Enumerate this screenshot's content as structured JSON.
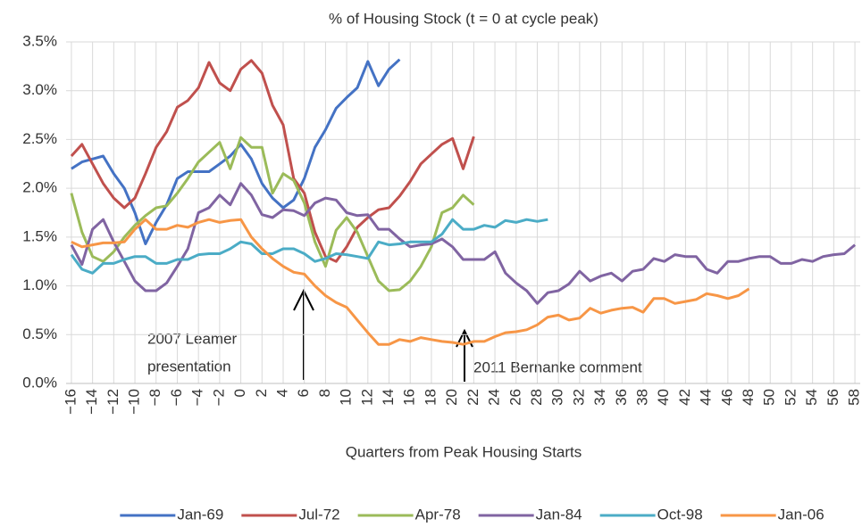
{
  "chart_data": {
    "type": "line",
    "title": "% of Housing Stock (t = 0 at cycle peak)",
    "x_label": "Quarters from Peak Housing Starts",
    "xlim": [
      -16.5,
      58.5
    ],
    "xticks": [
      {
        "value": -16,
        "label": "−16"
      },
      {
        "value": -14,
        "label": "−14"
      },
      {
        "value": -12,
        "label": "−12"
      },
      {
        "value": -10,
        "label": "−10"
      },
      {
        "value": -8,
        "label": "−8"
      },
      {
        "value": -6,
        "label": "−6"
      },
      {
        "value": -4,
        "label": "−4"
      },
      {
        "value": -2,
        "label": "−2"
      },
      0,
      2,
      4,
      6,
      8,
      10,
      12,
      14,
      16,
      18,
      20,
      22,
      24,
      26,
      28,
      30,
      32,
      34,
      36,
      38,
      40,
      42,
      44,
      46,
      48,
      50,
      52,
      54,
      56,
      58
    ],
    "ylim": [
      0,
      3.5
    ],
    "yticks": [
      {
        "value": 0,
        "label": "0.0%"
      },
      {
        "value": 0.5,
        "label": "0.5%"
      },
      {
        "value": 1,
        "label": "1.0%"
      },
      {
        "value": 1.5,
        "label": "1.5%"
      },
      {
        "value": 2,
        "label": "2.0%"
      },
      {
        "value": 2.5,
        "label": "2.5%"
      },
      {
        "value": 3,
        "label": "3.0%"
      },
      {
        "value": 3.5,
        "label": "3.5%"
      }
    ],
    "grid": true,
    "legend": "bottom",
    "series": [
      {
        "name": "Jan-69",
        "color": "#4472c4",
        "x": [
          -16,
          -15,
          -14,
          -13,
          -12,
          -11,
          -10,
          -9,
          -8,
          -7,
          -6,
          -5,
          -4,
          -3,
          -2,
          -1,
          0,
          1,
          2,
          3,
          4,
          5,
          6,
          7,
          8,
          9,
          10,
          11,
          12,
          13,
          14,
          15
        ],
        "values": [
          2.2,
          2.27,
          2.3,
          2.33,
          2.15,
          2.0,
          1.75,
          1.43,
          1.65,
          1.83,
          2.1,
          2.17,
          2.17,
          2.17,
          2.25,
          2.33,
          2.45,
          2.3,
          2.05,
          1.9,
          1.8,
          1.88,
          2.1,
          2.42,
          2.6,
          2.82,
          2.93,
          3.03,
          3.3,
          3.05,
          3.22,
          3.32
        ]
      },
      {
        "name": "Jul-72",
        "color": "#c0504d",
        "x": [
          -16,
          -15,
          -14,
          -13,
          -12,
          -11,
          -10,
          -9,
          -8,
          -7,
          -6,
          -5,
          -4,
          -3,
          -2,
          -1,
          0,
          1,
          2,
          3,
          4,
          5,
          6,
          7,
          8,
          9,
          10,
          11,
          12,
          13,
          14,
          15,
          16,
          17,
          18,
          19,
          20,
          21,
          22
        ],
        "values": [
          2.33,
          2.45,
          2.25,
          2.05,
          1.9,
          1.8,
          1.9,
          2.15,
          2.42,
          2.58,
          2.83,
          2.9,
          3.03,
          3.29,
          3.08,
          3.0,
          3.22,
          3.31,
          3.18,
          2.85,
          2.65,
          2.1,
          1.95,
          1.55,
          1.3,
          1.25,
          1.4,
          1.6,
          1.7,
          1.78,
          1.8,
          1.92,
          2.07,
          2.25,
          2.35,
          2.45,
          2.51,
          2.2,
          2.53
        ]
      },
      {
        "name": "Apr-78",
        "color": "#9bbb59",
        "x": [
          -16,
          -15,
          -14,
          -13,
          -12,
          -11,
          -10,
          -9,
          -8,
          -7,
          -6,
          -5,
          -4,
          -3,
          -2,
          -1,
          0,
          1,
          2,
          3,
          4,
          5,
          6,
          7,
          8,
          9,
          10,
          11,
          12,
          13,
          14,
          15,
          16,
          17,
          18,
          19,
          20,
          21,
          22
        ],
        "values": [
          1.95,
          1.55,
          1.3,
          1.25,
          1.35,
          1.5,
          1.62,
          1.72,
          1.8,
          1.82,
          1.95,
          2.1,
          2.27,
          2.37,
          2.47,
          2.2,
          2.52,
          2.42,
          2.42,
          1.95,
          2.15,
          2.08,
          1.85,
          1.45,
          1.2,
          1.57,
          1.7,
          1.55,
          1.3,
          1.05,
          0.95,
          0.96,
          1.05,
          1.2,
          1.4,
          1.75,
          1.8,
          1.93,
          1.83
        ]
      },
      {
        "name": "Jan-84",
        "color": "#8064a2",
        "x": [
          -16,
          -15,
          -14,
          -13,
          -12,
          -11,
          -10,
          -9,
          -8,
          -7,
          -6,
          -5,
          -4,
          -3,
          -2,
          -1,
          0,
          1,
          2,
          3,
          4,
          5,
          6,
          7,
          8,
          9,
          10,
          11,
          12,
          13,
          14,
          15,
          16,
          17,
          18,
          19,
          20,
          21,
          22,
          23,
          24,
          25,
          26,
          27,
          28,
          29,
          30,
          31,
          32,
          33,
          34,
          35,
          36,
          37,
          38,
          39,
          40,
          41,
          42,
          43,
          44,
          45,
          46,
          47,
          48,
          49,
          50,
          51,
          52,
          53,
          54,
          55,
          56,
          57,
          58
        ],
        "values": [
          1.42,
          1.22,
          1.58,
          1.68,
          1.45,
          1.25,
          1.05,
          0.95,
          0.95,
          1.03,
          1.2,
          1.38,
          1.75,
          1.8,
          1.93,
          1.83,
          2.05,
          1.93,
          1.73,
          1.7,
          1.78,
          1.77,
          1.72,
          1.85,
          1.9,
          1.88,
          1.75,
          1.72,
          1.73,
          1.58,
          1.58,
          1.48,
          1.4,
          1.42,
          1.43,
          1.48,
          1.4,
          1.27,
          1.27,
          1.27,
          1.35,
          1.13,
          1.03,
          0.95,
          0.82,
          0.93,
          0.95,
          1.02,
          1.15,
          1.05,
          1.1,
          1.13,
          1.05,
          1.15,
          1.17,
          1.28,
          1.25,
          1.32,
          1.3,
          1.3,
          1.17,
          1.13,
          1.25,
          1.25,
          1.28,
          1.3,
          1.3,
          1.23,
          1.23,
          1.27,
          1.25,
          1.3,
          1.32,
          1.33,
          1.42
        ]
      },
      {
        "name": "Oct-98",
        "color": "#4bacc6",
        "x": [
          -16,
          -15,
          -14,
          -13,
          -12,
          -11,
          -10,
          -9,
          -8,
          -7,
          -6,
          -5,
          -4,
          -3,
          -2,
          -1,
          0,
          1,
          2,
          3,
          4,
          5,
          6,
          7,
          8,
          9,
          10,
          11,
          12,
          13,
          14,
          15,
          16,
          17,
          18,
          19,
          20,
          21,
          22,
          23,
          24,
          25,
          26,
          27,
          28,
          29
        ],
        "values": [
          1.32,
          1.17,
          1.13,
          1.23,
          1.23,
          1.27,
          1.3,
          1.3,
          1.23,
          1.23,
          1.27,
          1.27,
          1.32,
          1.33,
          1.33,
          1.38,
          1.45,
          1.43,
          1.33,
          1.33,
          1.38,
          1.38,
          1.33,
          1.25,
          1.28,
          1.33,
          1.32,
          1.3,
          1.28,
          1.45,
          1.42,
          1.43,
          1.45,
          1.45,
          1.45,
          1.53,
          1.68,
          1.58,
          1.58,
          1.62,
          1.6,
          1.67,
          1.65,
          1.68,
          1.66,
          1.68
        ]
      },
      {
        "name": "Jan-06",
        "color": "#f79646",
        "x": [
          -16,
          -15,
          -14,
          -13,
          -12,
          -11,
          -10,
          -9,
          -8,
          -7,
          -6,
          -5,
          -4,
          -3,
          -2,
          -1,
          0,
          1,
          2,
          3,
          4,
          5,
          6,
          7,
          8,
          9,
          10,
          11,
          12,
          13,
          14,
          15,
          16,
          17,
          18,
          19,
          20,
          21,
          22,
          23,
          24,
          25,
          26,
          27,
          28,
          29,
          30,
          31,
          32,
          33,
          34,
          35,
          36,
          37,
          38,
          39,
          40,
          41,
          42,
          43,
          44,
          45,
          46,
          47,
          48
        ],
        "values": [
          1.45,
          1.4,
          1.42,
          1.44,
          1.44,
          1.45,
          1.58,
          1.68,
          1.58,
          1.58,
          1.62,
          1.6,
          1.65,
          1.68,
          1.65,
          1.67,
          1.68,
          1.5,
          1.38,
          1.28,
          1.2,
          1.14,
          1.12,
          1.0,
          0.9,
          0.83,
          0.78,
          0.65,
          0.52,
          0.4,
          0.4,
          0.45,
          0.43,
          0.47,
          0.45,
          0.43,
          0.42,
          0.4,
          0.43,
          0.43,
          0.48,
          0.52,
          0.53,
          0.55,
          0.6,
          0.68,
          0.7,
          0.65,
          0.67,
          0.77,
          0.72,
          0.75,
          0.77,
          0.78,
          0.73,
          0.87,
          0.87,
          0.82,
          0.84,
          0.86,
          0.92,
          0.9,
          0.87,
          0.9,
          0.97
        ]
      }
    ],
    "annotations": [
      {
        "lines": [
          "2007 Leamer",
          "presentation"
        ]
      },
      {
        "lines": [
          "2011 Bernanke comment"
        ]
      }
    ]
  }
}
